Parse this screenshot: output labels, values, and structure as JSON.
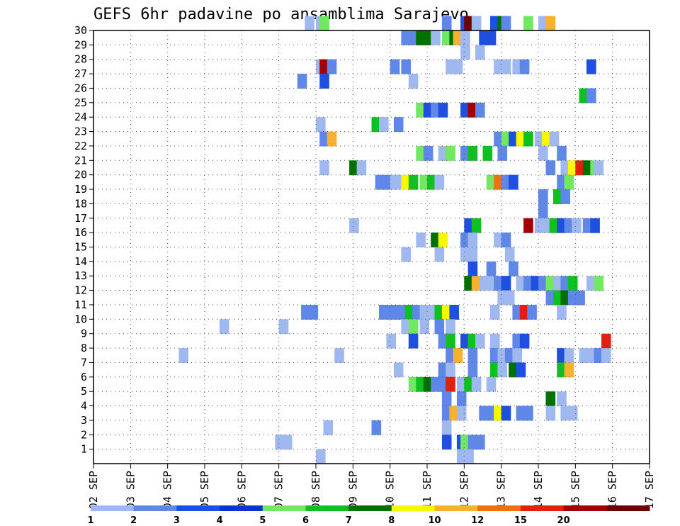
{
  "chart_data": {
    "type": "heatmap",
    "title": "GEFS 6hr padavine po ansamblima Sarajevo",
    "x_tick_labels": [
      "02 SEP",
      "03 SEP",
      "04 SEP",
      "05 SEP",
      "06 SEP",
      "07 SEP",
      "08 SEP",
      "09 SEP",
      "10 SEP",
      "11 SEP",
      "12 SEP",
      "13 SEP",
      "14 SEP",
      "15 SEP",
      "16 SEP",
      "17 SEP"
    ],
    "y_tick_labels": [
      "1",
      "2",
      "3",
      "4",
      "5",
      "6",
      "7",
      "8",
      "9",
      "10",
      "11",
      "12",
      "13",
      "14",
      "15",
      "16",
      "17",
      "18",
      "19",
      "20",
      "21",
      "22",
      "23",
      "24",
      "25",
      "26",
      "27",
      "28",
      "29",
      "30"
    ],
    "ylim": [
      1,
      30
    ],
    "grid": true,
    "legend": {
      "placement": "bottom",
      "labels": [
        "1",
        "2",
        "3",
        "4",
        "5",
        "6",
        "7",
        "8",
        "10",
        "12",
        "15",
        "20"
      ],
      "colors": [
        "#a0b8f0",
        "#5f87e8",
        "#1f4fe0",
        "#1030d0",
        "#70e860",
        "#10c020",
        "#007000",
        "#f8f800",
        "#f8b030",
        "#f07010",
        "#e02010",
        "#a00000",
        "#700000"
      ]
    },
    "color_by_level": {
      "1": "#a0b8f0",
      "2": "#5f87e8",
      "3": "#1f4fe0",
      "4": "#1030d0",
      "5": "#70e860",
      "6": "#10c020",
      "7": "#007000",
      "8": "#f8f800",
      "10": "#f8b030",
      "12": "#f07010",
      "15": "#e02010",
      "20": "#a00000",
      "21": "#700000"
    },
    "cells": [
      {
        "m": 30,
        "x": [
          [
            7.7,
            1
          ],
          [
            8.0,
            1
          ],
          [
            8.1,
            5
          ],
          [
            11.4,
            2
          ],
          [
            11.9,
            3
          ],
          [
            12.0,
            21
          ],
          [
            12.2,
            1
          ],
          [
            12.7,
            3
          ],
          [
            12.9,
            7
          ],
          [
            13.0,
            2
          ],
          [
            13.6,
            5
          ],
          [
            14.0,
            1
          ],
          [
            14.2,
            10
          ]
        ]
      },
      {
        "m": 29,
        "x": [
          [
            10.3,
            2
          ],
          [
            10.5,
            2
          ],
          [
            10.7,
            7
          ],
          [
            10.9,
            7
          ],
          [
            11.1,
            1
          ],
          [
            11.4,
            5
          ],
          [
            11.6,
            7
          ],
          [
            11.7,
            10
          ],
          [
            11.9,
            1
          ],
          [
            12.4,
            3
          ],
          [
            12.6,
            3
          ]
        ]
      },
      {
        "m": 28,
        "x": [
          [
            11.9,
            1
          ],
          [
            12.3,
            1
          ]
        ]
      },
      {
        "m": 27,
        "x": [
          [
            8.0,
            1
          ],
          [
            8.1,
            20
          ],
          [
            8.3,
            2
          ],
          [
            10.0,
            2
          ],
          [
            10.3,
            2
          ],
          [
            11.5,
            1
          ],
          [
            11.7,
            1
          ],
          [
            12.8,
            1
          ],
          [
            13.0,
            1
          ],
          [
            13.3,
            1
          ],
          [
            13.5,
            2
          ],
          [
            15.3,
            3
          ]
        ]
      },
      {
        "m": 26,
        "x": [
          [
            7.5,
            2
          ],
          [
            8.1,
            3
          ],
          [
            10.5,
            1
          ]
        ]
      },
      {
        "m": 25,
        "x": [
          [
            15.1,
            6
          ],
          [
            15.3,
            2
          ]
        ]
      },
      {
        "m": 24,
        "x": [
          [
            10.7,
            5
          ],
          [
            10.9,
            3
          ],
          [
            11.1,
            2
          ],
          [
            11.3,
            3
          ],
          [
            11.9,
            3
          ],
          [
            12.1,
            20
          ],
          [
            12.3,
            2
          ]
        ]
      },
      {
        "m": 23,
        "x": [
          [
            8.0,
            1
          ],
          [
            9.5,
            6
          ],
          [
            9.7,
            1
          ],
          [
            10.1,
            2
          ]
        ]
      },
      {
        "m": 22,
        "x": [
          [
            8.1,
            2
          ],
          [
            8.3,
            10
          ],
          [
            12.8,
            2
          ],
          [
            13.0,
            5
          ],
          [
            13.2,
            3
          ],
          [
            13.4,
            8
          ],
          [
            13.6,
            6
          ],
          [
            13.9,
            1
          ],
          [
            14.1,
            8
          ],
          [
            14.3,
            1
          ]
        ]
      },
      {
        "m": 21,
        "x": [
          [
            10.7,
            5
          ],
          [
            10.9,
            2
          ],
          [
            11.3,
            1
          ],
          [
            11.5,
            5
          ],
          [
            11.9,
            2
          ],
          [
            12.1,
            6
          ],
          [
            12.5,
            6
          ],
          [
            12.9,
            2
          ],
          [
            14.0,
            1
          ],
          [
            14.5,
            2
          ]
        ]
      },
      {
        "m": 20,
        "x": [
          [
            8.1,
            1
          ],
          [
            8.9,
            7
          ],
          [
            9.1,
            1
          ],
          [
            14.2,
            2
          ],
          [
            14.6,
            1
          ],
          [
            14.8,
            8
          ],
          [
            15.0,
            15
          ],
          [
            15.2,
            7
          ],
          [
            15.4,
            5
          ],
          [
            15.5,
            1
          ]
        ]
      },
      {
        "m": 19,
        "x": [
          [
            9.6,
            2
          ],
          [
            9.8,
            2
          ],
          [
            10.0,
            1
          ],
          [
            10.1,
            1
          ],
          [
            10.3,
            8
          ],
          [
            10.5,
            6
          ],
          [
            10.8,
            5
          ],
          [
            11.0,
            6
          ],
          [
            11.2,
            1
          ],
          [
            12.6,
            5
          ],
          [
            12.8,
            12
          ],
          [
            13.0,
            2
          ],
          [
            13.2,
            3
          ],
          [
            14.5,
            2
          ],
          [
            14.7,
            5
          ]
        ]
      },
      {
        "m": 18,
        "x": [
          [
            14.0,
            2
          ],
          [
            14.4,
            6
          ],
          [
            14.6,
            2
          ]
        ]
      },
      {
        "m": 17,
        "x": [
          [
            14.0,
            2
          ]
        ]
      },
      {
        "m": 16,
        "x": [
          [
            8.9,
            1
          ],
          [
            12.0,
            3
          ],
          [
            12.2,
            6
          ],
          [
            13.6,
            20
          ],
          [
            13.9,
            1
          ],
          [
            14.1,
            1
          ],
          [
            14.3,
            6
          ],
          [
            14.5,
            3
          ],
          [
            14.7,
            2
          ],
          [
            14.9,
            1
          ],
          [
            15.2,
            2
          ],
          [
            15.4,
            3
          ]
        ]
      },
      {
        "m": 15,
        "x": [
          [
            10.7,
            1
          ],
          [
            11.1,
            7
          ],
          [
            11.3,
            8
          ],
          [
            11.9,
            2
          ],
          [
            12.1,
            1
          ],
          [
            12.8,
            1
          ],
          [
            13.0,
            2
          ]
        ]
      },
      {
        "m": 14,
        "x": [
          [
            10.3,
            1
          ],
          [
            11.2,
            1
          ],
          [
            11.9,
            1
          ],
          [
            12.1,
            1
          ],
          [
            13.1,
            1
          ]
        ]
      },
      {
        "m": 13,
        "x": [
          [
            12.1,
            3
          ],
          [
            12.6,
            2
          ],
          [
            13.2,
            2
          ]
        ]
      },
      {
        "m": 12,
        "x": [
          [
            12.0,
            7
          ],
          [
            12.2,
            10
          ],
          [
            12.4,
            1
          ],
          [
            12.6,
            1
          ],
          [
            12.8,
            2
          ],
          [
            13.0,
            3
          ],
          [
            13.4,
            1
          ],
          [
            13.6,
            2
          ],
          [
            13.8,
            3
          ],
          [
            14.0,
            2
          ],
          [
            14.2,
            5
          ],
          [
            14.4,
            1
          ],
          [
            14.6,
            2
          ],
          [
            14.8,
            6
          ],
          [
            15.3,
            1
          ],
          [
            15.5,
            5
          ]
        ]
      },
      {
        "m": 11,
        "x": [
          [
            12.9,
            1
          ],
          [
            13.1,
            1
          ],
          [
            14.2,
            2
          ],
          [
            14.4,
            6
          ],
          [
            14.6,
            7
          ],
          [
            14.8,
            2
          ],
          [
            15.0,
            2
          ]
        ]
      },
      {
        "m": 10,
        "x": [
          [
            7.6,
            2
          ],
          [
            7.8,
            2
          ],
          [
            9.7,
            2
          ],
          [
            9.9,
            2
          ],
          [
            10.0,
            2
          ],
          [
            10.2,
            2
          ],
          [
            10.4,
            6
          ],
          [
            10.6,
            2
          ],
          [
            10.8,
            1
          ],
          [
            11.0,
            1
          ],
          [
            11.2,
            6
          ],
          [
            11.4,
            8
          ],
          [
            11.6,
            3
          ],
          [
            12.7,
            1
          ],
          [
            13.3,
            2
          ],
          [
            13.5,
            15
          ],
          [
            13.7,
            2
          ],
          [
            14.5,
            1
          ]
        ]
      },
      {
        "m": 9,
        "x": [
          [
            5.4,
            1
          ],
          [
            7.0,
            1
          ],
          [
            10.3,
            1
          ],
          [
            10.5,
            5
          ],
          [
            10.8,
            1
          ],
          [
            11.2,
            2
          ],
          [
            11.5,
            1
          ]
        ]
      },
      {
        "m": 8,
        "x": [
          [
            9.9,
            1
          ],
          [
            10.5,
            3
          ],
          [
            11.3,
            2
          ],
          [
            11.5,
            6
          ],
          [
            11.9,
            3
          ],
          [
            12.1,
            6
          ],
          [
            12.3,
            1
          ],
          [
            12.7,
            1
          ],
          [
            13.3,
            2
          ],
          [
            13.5,
            3
          ],
          [
            15.7,
            15
          ]
        ]
      },
      {
        "m": 7,
        "x": [
          [
            4.3,
            1
          ],
          [
            8.5,
            1
          ],
          [
            11.5,
            2
          ],
          [
            11.7,
            10
          ],
          [
            12.1,
            2
          ],
          [
            12.7,
            2
          ],
          [
            12.9,
            1
          ],
          [
            13.1,
            2
          ],
          [
            13.3,
            1
          ],
          [
            14.5,
            3
          ],
          [
            14.7,
            1
          ],
          [
            15.1,
            1
          ],
          [
            15.3,
            1
          ],
          [
            15.5,
            2
          ],
          [
            15.7,
            1
          ]
        ]
      },
      {
        "m": 6,
        "x": [
          [
            10.1,
            1
          ],
          [
            11.3,
            2
          ],
          [
            11.5,
            1
          ],
          [
            12.1,
            2
          ],
          [
            12.7,
            6
          ],
          [
            12.9,
            1
          ],
          [
            13.2,
            7
          ],
          [
            13.4,
            3
          ],
          [
            14.5,
            6
          ],
          [
            14.7,
            10
          ]
        ]
      },
      {
        "m": 5,
        "x": [
          [
            10.5,
            5
          ],
          [
            10.7,
            6
          ],
          [
            10.9,
            7
          ],
          [
            11.1,
            2
          ],
          [
            11.3,
            2
          ],
          [
            11.5,
            15
          ],
          [
            11.8,
            1
          ],
          [
            12.0,
            6
          ],
          [
            12.2,
            1
          ],
          [
            12.6,
            1
          ]
        ]
      },
      {
        "m": 4,
        "x": [
          [
            11.4,
            2
          ],
          [
            11.8,
            2
          ],
          [
            14.2,
            7
          ],
          [
            14.5,
            1
          ]
        ]
      },
      {
        "m": 3,
        "x": [
          [
            11.4,
            2
          ],
          [
            11.6,
            10
          ],
          [
            11.8,
            1
          ],
          [
            12.4,
            2
          ],
          [
            12.6,
            2
          ],
          [
            12.8,
            8
          ],
          [
            13.0,
            3
          ],
          [
            13.4,
            2
          ],
          [
            13.6,
            2
          ],
          [
            14.2,
            1
          ],
          [
            14.6,
            1
          ],
          [
            14.8,
            1
          ]
        ]
      },
      {
        "m": 2,
        "x": [
          [
            8.2,
            1
          ],
          [
            9.5,
            2
          ],
          [
            11.4,
            1
          ]
        ]
      },
      {
        "m": 1,
        "x": [
          [
            6.9,
            1
          ],
          [
            7.1,
            1
          ],
          [
            11.4,
            3
          ],
          [
            11.8,
            3
          ],
          [
            11.9,
            5
          ],
          [
            12.1,
            2
          ],
          [
            12.3,
            2
          ]
        ]
      },
      {
        "m": 0,
        "x": [
          [
            8.0,
            1
          ],
          [
            11.8,
            1
          ],
          [
            12.0,
            1
          ]
        ]
      }
    ]
  }
}
